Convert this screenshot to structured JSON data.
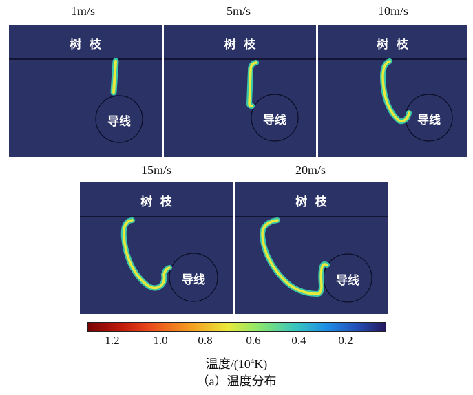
{
  "panels": [
    {
      "speed": "1m/s",
      "branch": "树  枝",
      "conductor": "导线"
    },
    {
      "speed": "5m/s",
      "branch": "树  枝",
      "conductor": "导线"
    },
    {
      "speed": "10m/s",
      "branch": "树  枝",
      "conductor": "导线"
    },
    {
      "speed": "15m/s",
      "branch": "树  枝",
      "conductor": "导线"
    },
    {
      "speed": "20m/s",
      "branch": "树  枝",
      "conductor": "导线"
    }
  ],
  "colorbar": {
    "ticks": [
      "1.2",
      "1.0",
      "0.8",
      "0.6",
      "0.4",
      "0.2"
    ],
    "unit_label": "温度/(10",
    "unit_sup": "4",
    "unit_suffix": "K)",
    "colors": [
      "#7a0403",
      "#e8461b",
      "#e9e93b",
      "#36c4c0",
      "#2450b9",
      "#25185e"
    ]
  },
  "caption": "（a）温度分布"
}
